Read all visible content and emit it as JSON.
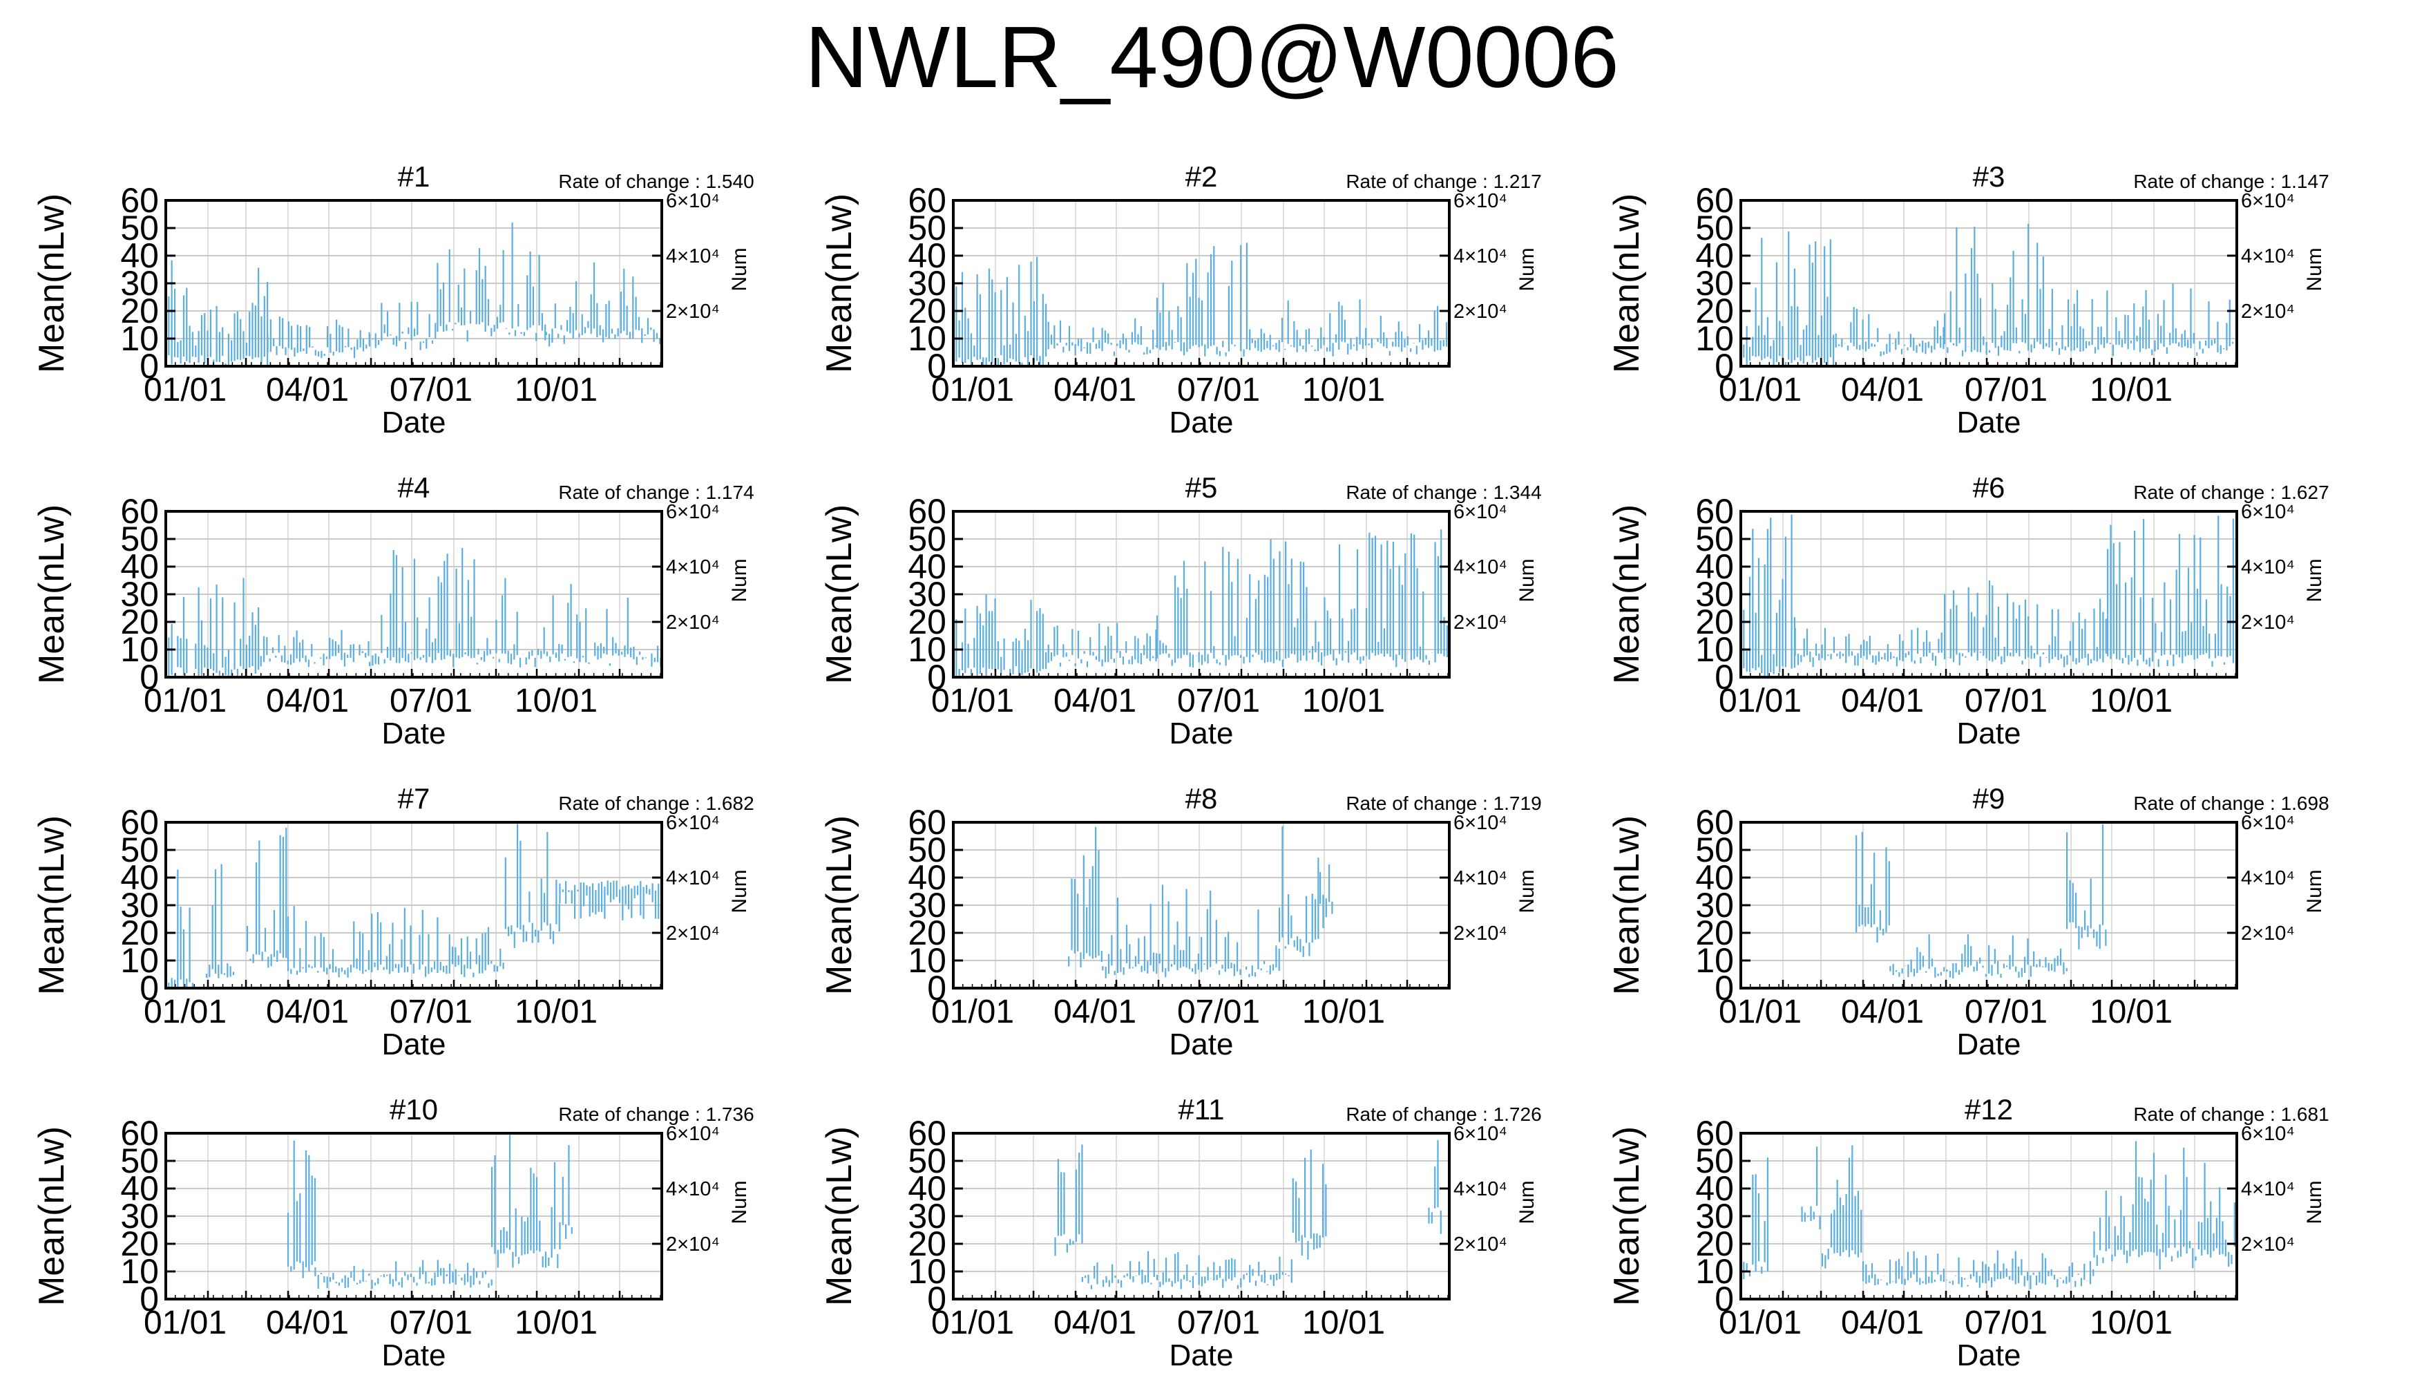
{
  "title": "NWLR_490@W0006",
  "common": {
    "ylabel": "Mean(nLw)",
    "xlabel": "Date",
    "y2label": "Num",
    "yticks": [
      "0",
      "10",
      "20",
      "30",
      "40",
      "50",
      "60"
    ],
    "y2ticks": [
      "2×10⁴",
      "4×10⁴",
      "6×10⁴"
    ],
    "xticks": [
      "01/01",
      "04/01",
      "07/01",
      "10/01"
    ],
    "rate_prefix": "Rate of change : ",
    "line_color": "#5aaee0"
  },
  "chart_data": [
    {
      "type": "line",
      "panel": "#1",
      "rate": "1.540",
      "ylim": [
        0,
        60
      ],
      "y2lim": [
        0,
        60000
      ],
      "segments": [
        [
          0,
          75,
          [
            0,
            10,
            15,
            20,
            28,
            35,
            42
          ]
        ],
        [
          75,
          150,
          [
            4,
            8,
            12,
            15,
            18,
            22
          ]
        ],
        [
          150,
          200,
          [
            8,
            10,
            13,
            18,
            25
          ]
        ],
        [
          200,
          280,
          [
            12,
            15,
            18,
            25,
            35,
            45,
            58
          ]
        ],
        [
          280,
          365,
          [
            10,
            12,
            15,
            20,
            25,
            30,
            38
          ]
        ]
      ]
    },
    {
      "type": "line",
      "panel": "#2",
      "rate": "1.217",
      "ylim": [
        0,
        60
      ],
      "y2lim": [
        0,
        60000
      ],
      "segments": [
        [
          0,
          70,
          [
            0,
            10,
            15,
            20,
            28,
            35,
            40
          ]
        ],
        [
          70,
          150,
          [
            5,
            8,
            10,
            12,
            15,
            18
          ]
        ],
        [
          150,
          220,
          [
            5,
            10,
            15,
            25,
            35,
            45,
            53
          ]
        ],
        [
          220,
          365,
          [
            5,
            8,
            10,
            12,
            14,
            18,
            25
          ]
        ]
      ]
    },
    {
      "type": "line",
      "panel": "#3",
      "rate": "1.147",
      "ylim": [
        0,
        60
      ],
      "y2lim": [
        0,
        60000
      ],
      "segments": [
        [
          0,
          70,
          [
            0,
            10,
            15,
            20,
            30,
            45,
            53
          ]
        ],
        [
          70,
          150,
          [
            5,
            8,
            10,
            12,
            16,
            22
          ]
        ],
        [
          150,
          230,
          [
            5,
            10,
            15,
            25,
            35,
            45,
            54
          ]
        ],
        [
          230,
          365,
          [
            5,
            8,
            10,
            12,
            15,
            20,
            30
          ]
        ]
      ]
    },
    {
      "type": "line",
      "panel": "#4",
      "rate": "1.174",
      "ylim": [
        0,
        60
      ],
      "y2lim": [
        0,
        60000
      ],
      "segments": [
        [
          0,
          70,
          [
            0,
            10,
            15,
            20,
            28,
            35,
            40
          ]
        ],
        [
          70,
          150,
          [
            5,
            8,
            10,
            12,
            15,
            18
          ]
        ],
        [
          150,
          230,
          [
            5,
            10,
            15,
            25,
            35,
            45,
            48
          ]
        ],
        [
          230,
          365,
          [
            5,
            8,
            10,
            12,
            15,
            25,
            38
          ]
        ]
      ]
    },
    {
      "type": "line",
      "panel": "#5",
      "rate": "1.344",
      "ylim": [
        0,
        60
      ],
      "y2lim": [
        0,
        60000
      ],
      "segments": [
        [
          0,
          70,
          [
            0,
            10,
            15,
            20,
            25,
            32
          ]
        ],
        [
          70,
          150,
          [
            5,
            8,
            10,
            12,
            15,
            20
          ]
        ],
        [
          150,
          260,
          [
            5,
            10,
            15,
            25,
            35,
            45,
            50
          ]
        ],
        [
          260,
          365,
          [
            5,
            10,
            15,
            25,
            40,
            55,
            60
          ]
        ]
      ]
    },
    {
      "type": "line",
      "panel": "#6",
      "rate": "1.627",
      "ylim": [
        0,
        60
      ],
      "y2lim": [
        0,
        60000
      ],
      "segments": [
        [
          0,
          40,
          [
            0,
            10,
            30,
            50,
            60
          ]
        ],
        [
          40,
          150,
          [
            5,
            8,
            10,
            12,
            15,
            18
          ]
        ],
        [
          150,
          270,
          [
            5,
            10,
            15,
            25,
            30,
            35
          ]
        ],
        [
          270,
          365,
          [
            5,
            20,
            40,
            60
          ]
        ]
      ]
    },
    {
      "type": "line",
      "panel": "#7",
      "rate": "1.682",
      "ylim": [
        0,
        60
      ],
      "y2lim": [
        0,
        60000
      ],
      "segments": [
        [
          0,
          20,
          [
            0,
            30,
            60
          ]
        ],
        [
          30,
          50,
          [
            5,
            40,
            60
          ]
        ],
        [
          60,
          90,
          [
            10,
            30,
            60
          ]
        ],
        [
          90,
          250,
          [
            5,
            8,
            10,
            15,
            20,
            25,
            30
          ]
        ],
        [
          250,
          290,
          [
            20,
            40,
            60
          ]
        ],
        [
          290,
          365,
          [
            35
          ]
        ]
      ]
    },
    {
      "type": "line",
      "panel": "#8",
      "rate": "1.719",
      "ylim": [
        0,
        60
      ],
      "y2lim": [
        0,
        60000
      ],
      "segments": [
        [
          85,
          110,
          [
            10,
            40,
            60
          ]
        ],
        [
          110,
          240,
          [
            5,
            8,
            10,
            15,
            20,
            25,
            40
          ]
        ],
        [
          240,
          270,
          [
            15,
            35,
            60
          ]
        ],
        [
          270,
          280,
          [
            30,
            60
          ]
        ]
      ]
    },
    {
      "type": "line",
      "panel": "#9",
      "rate": "1.698",
      "ylim": [
        0,
        60
      ],
      "y2lim": [
        0,
        60000
      ],
      "segments": [
        [
          85,
          110,
          [
            20,
            40,
            60
          ]
        ],
        [
          110,
          240,
          [
            5,
            8,
            10,
            12,
            15,
            20
          ]
        ],
        [
          240,
          270,
          [
            20,
            40,
            60
          ]
        ]
      ]
    },
    {
      "type": "line",
      "panel": "#10",
      "rate": "1.736",
      "ylim": [
        0,
        60
      ],
      "y2lim": [
        0,
        60000
      ],
      "segments": [
        [
          90,
          110,
          [
            10,
            40,
            60
          ]
        ],
        [
          110,
          240,
          [
            5,
            8,
            10,
            12,
            15
          ]
        ],
        [
          240,
          290,
          [
            15,
            35,
            60
          ]
        ],
        [
          290,
          300,
          [
            25,
            60
          ]
        ]
      ]
    },
    {
      "type": "line",
      "panel": "#11",
      "rate": "1.726",
      "ylim": [
        0,
        60
      ],
      "y2lim": [
        0,
        60000
      ],
      "segments": [
        [
          75,
          95,
          [
            20,
            50,
            60
          ]
        ],
        [
          95,
          250,
          [
            5,
            8,
            10,
            12,
            15,
            18
          ]
        ],
        [
          250,
          275,
          [
            20,
            50,
            60
          ]
        ],
        [
          350,
          360,
          [
            30,
            60
          ]
        ]
      ]
    },
    {
      "type": "line",
      "panel": "#12",
      "rate": "1.681",
      "ylim": [
        0,
        60
      ],
      "y2lim": [
        0,
        60000
      ],
      "segments": [
        [
          0,
          20,
          [
            10,
            40,
            60
          ]
        ],
        [
          45,
          60,
          [
            30,
            60
          ]
        ],
        [
          60,
          90,
          [
            15,
            40,
            60
          ]
        ],
        [
          90,
          260,
          [
            5,
            8,
            10,
            12,
            15,
            18
          ]
        ],
        [
          260,
          365,
          [
            15,
            30,
            45,
            60
          ]
        ]
      ]
    }
  ]
}
